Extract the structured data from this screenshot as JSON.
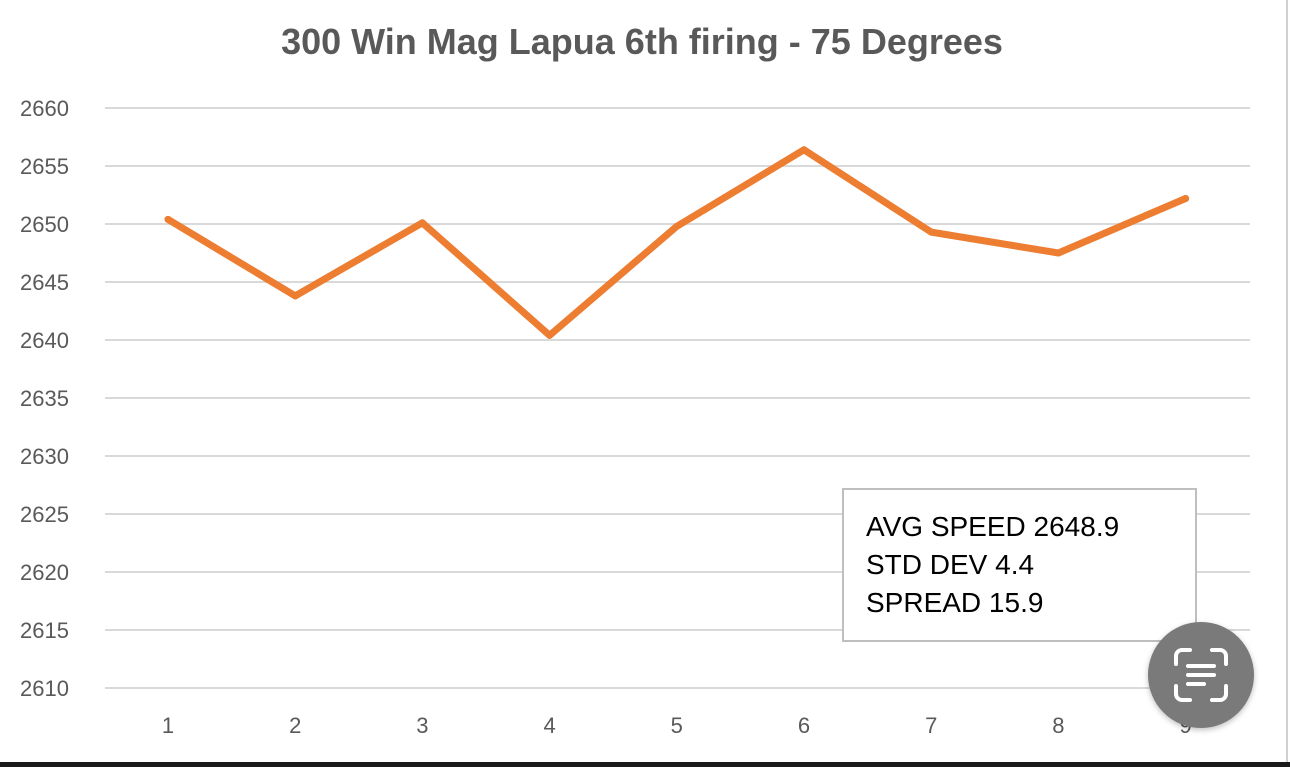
{
  "chart_data": {
    "type": "line",
    "title": "300 Win Mag Lapua 6th firing - 75 Degrees",
    "xlabel": "",
    "ylabel": "",
    "categories": [
      "1",
      "2",
      "3",
      "4",
      "5",
      "6",
      "7",
      "8",
      "9"
    ],
    "series": [
      {
        "values": [
          2650.4,
          2643.8,
          2650.1,
          2640.4,
          2649.8,
          2656.4,
          2649.3,
          2647.5,
          2652.2
        ],
        "color": "#ed7d31"
      }
    ],
    "ylim": [
      2610,
      2660
    ],
    "yticks": [
      2660,
      2655,
      2650,
      2645,
      2640,
      2635,
      2630,
      2625,
      2620,
      2615,
      2610
    ],
    "grid": true,
    "legend": "none"
  },
  "stats": {
    "avg": "AVG SPEED 2648.9",
    "std": "STD DEV 4.4",
    "spread": "SPREAD 15.9"
  },
  "overlay": {
    "scan_icon": "text-scan-icon"
  }
}
